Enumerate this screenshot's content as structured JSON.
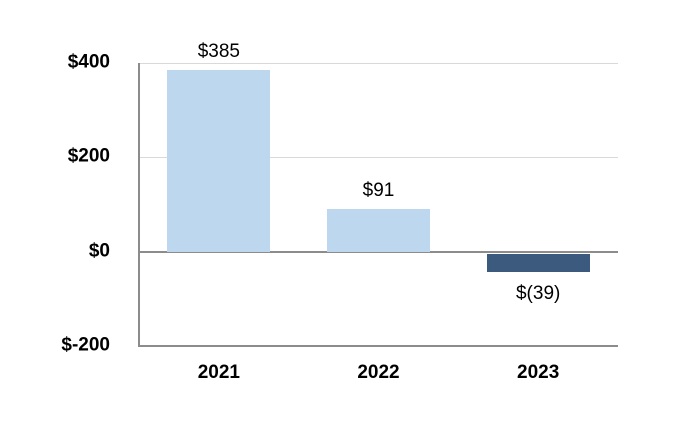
{
  "chart_data": {
    "type": "bar",
    "categories": [
      "2021",
      "2022",
      "2023"
    ],
    "values": [
      385,
      91,
      -39
    ],
    "data_labels": [
      "$385",
      "$91",
      "$(39)"
    ],
    "y_ticks": [
      {
        "label": "$400",
        "value": 400
      },
      {
        "label": "$200",
        "value": 200
      },
      {
        "label": "$0",
        "value": 0
      },
      {
        "label": "$-200",
        "value": -200
      }
    ],
    "ylim": [
      -200,
      400
    ],
    "title": "",
    "xlabel": "",
    "ylabel": "",
    "legend": false,
    "grid": true,
    "colors": {
      "bar_positive": "#BDD7EE",
      "bar_negative": "#3C5A7E",
      "gridline": "#D9D9D9",
      "axis_line": "#8C8C8C",
      "label_text": "#000000"
    }
  }
}
